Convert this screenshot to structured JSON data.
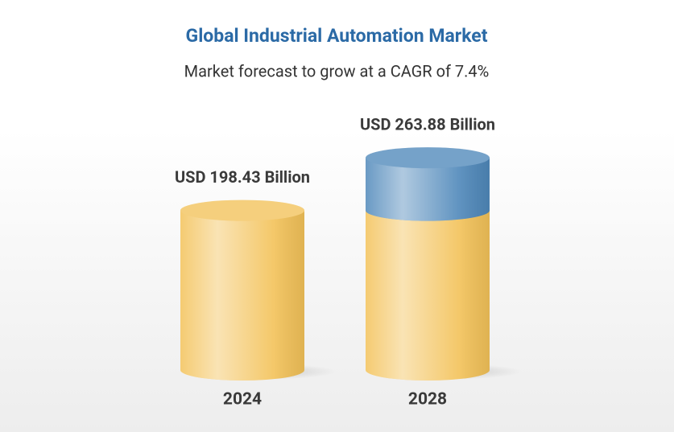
{
  "chart_data": {
    "type": "bar",
    "title": "Global Industrial Automation Market",
    "subtitle": "Market forecast to grow at a CAGR of 7.4%",
    "categories": [
      "2024",
      "2028"
    ],
    "values": [
      198.43,
      263.88
    ],
    "value_labels": [
      "USD 198.43 Billion",
      "USD 263.88 Billion"
    ],
    "color": "#f3c259",
    "growth_color": "#4f88ba"
  }
}
